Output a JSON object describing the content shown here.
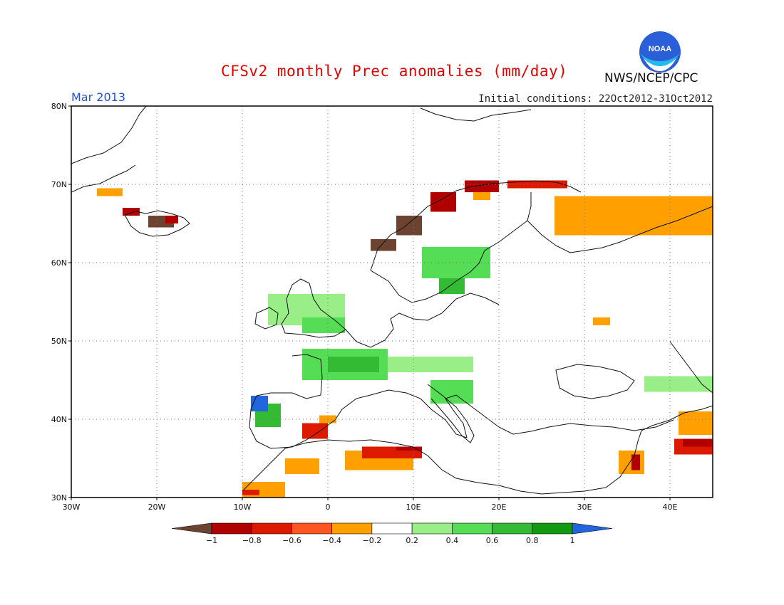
{
  "header": {
    "title": "CFSv2 monthly Prec anomalies (mm/day)",
    "month": "Mar 2013",
    "initial_conditions": "Initial conditions: 22Oct2012-31Oct2012",
    "agency": "NWS/NCEP/CPC",
    "logo_text": "NOAA"
  },
  "axes": {
    "lat_labels": [
      {
        "lat": 80,
        "label": "80N"
      },
      {
        "lat": 70,
        "label": "70N"
      },
      {
        "lat": 60,
        "label": "60N"
      },
      {
        "lat": 50,
        "label": "50N"
      },
      {
        "lat": 40,
        "label": "40N"
      },
      {
        "lat": 30,
        "label": "30N"
      }
    ],
    "lon_labels": [
      {
        "lon": -30,
        "label": "30W"
      },
      {
        "lon": -20,
        "label": "20W"
      },
      {
        "lon": -10,
        "label": "10W"
      },
      {
        "lon": 0,
        "label": "0"
      },
      {
        "lon": 10,
        "label": "10E"
      },
      {
        "lon": 20,
        "label": "20E"
      },
      {
        "lon": 30,
        "label": "30E"
      },
      {
        "lon": 40,
        "label": "40E"
      }
    ],
    "lon_range": [
      -30,
      45
    ],
    "lat_range": [
      30,
      80
    ],
    "grid": "dotted"
  },
  "colorbar": {
    "colors": [
      "#6b4330",
      "#b10000",
      "#dd1a00",
      "#ff5522",
      "#ffa000",
      "#ffffff",
      "#99ee88",
      "#55dd55",
      "#33bb33",
      "#119911",
      "#2266dd"
    ],
    "tick_labels": [
      "-1",
      "-0.8",
      "-0.6",
      "-0.4",
      "-0.2",
      "0.2",
      "0.4",
      "0.6",
      "0.8",
      "1"
    ]
  },
  "map_data": {
    "cell_deg": 1.25,
    "anomaly_patches": [
      {
        "region": "Iceland NW",
        "lon": -24,
        "lat": 66,
        "w": 2,
        "h": 1,
        "cls": "-0.8"
      },
      {
        "region": "Iceland S",
        "lon": -21,
        "lat": 64.5,
        "w": 3,
        "h": 1.5,
        "cls": "-1"
      },
      {
        "region": "Iceland S edge",
        "lon": -19,
        "lat": 65,
        "w": 1.5,
        "h": 1,
        "cls": "-0.8"
      },
      {
        "region": "Greenland E",
        "lon": -27,
        "lat": 68.5,
        "w": 3,
        "h": 1,
        "cls": "-0.4"
      },
      {
        "region": "Norway coast S",
        "lon": 5,
        "lat": 61.5,
        "w": 3,
        "h": 1.5,
        "cls": "-1"
      },
      {
        "region": "Norway coast mid",
        "lon": 8,
        "lat": 63.5,
        "w": 3,
        "h": 2.5,
        "cls": "-1"
      },
      {
        "region": "Norway coast N",
        "lon": 12,
        "lat": 66.5,
        "w": 3,
        "h": 2.5,
        "cls": "-0.8"
      },
      {
        "region": "Norway far N",
        "lon": 16,
        "lat": 69,
        "w": 4,
        "h": 1.5,
        "cls": "-0.8"
      },
      {
        "region": "Norway north inland",
        "lon": 17,
        "lat": 68,
        "w": 2,
        "h": 1,
        "cls": "-0.4"
      },
      {
        "region": "Finnmark",
        "lon": 21,
        "lat": 69.5,
        "w": 7,
        "h": 1,
        "cls": "-0.6"
      },
      {
        "region": "Kola / NW Russia",
        "lon": 26.5,
        "lat": 63.5,
        "w": 18.5,
        "h": 5,
        "cls": "-0.4"
      },
      {
        "region": "Belarus spot",
        "lon": 31,
        "lat": 52,
        "w": 2,
        "h": 1,
        "cls": "-0.4"
      },
      {
        "region": "Sweden / Finland S",
        "lon": 11,
        "lat": 58,
        "w": 8,
        "h": 4,
        "cls": "0.4"
      },
      {
        "region": "Sweden south",
        "lon": 13,
        "lat": 56,
        "w": 3,
        "h": 2,
        "cls": "0.6"
      },
      {
        "region": "British Isles",
        "lon": -7,
        "lat": 52,
        "w": 9,
        "h": 4,
        "cls": "0.2"
      },
      {
        "region": "UK south",
        "lon": -3,
        "lat": 51,
        "w": 5,
        "h": 2,
        "cls": "0.4"
      },
      {
        "region": "France",
        "lon": -3,
        "lat": 45,
        "w": 10,
        "h": 4,
        "cls": "0.4"
      },
      {
        "region": "France centre",
        "lon": 0,
        "lat": 46,
        "w": 6,
        "h": 2,
        "cls": "0.6"
      },
      {
        "region": "Alps / Central Europe",
        "lon": 7,
        "lat": 46,
        "w": 10,
        "h": 2,
        "cls": "0.2"
      },
      {
        "region": "Italy / Balkans",
        "lon": 12,
        "lat": 42,
        "w": 5,
        "h": 3,
        "cls": "0.4"
      },
      {
        "region": "Ukraine south",
        "lon": 37,
        "lat": 43.5,
        "w": 8,
        "h": 2,
        "cls": "0.2"
      },
      {
        "region": "Portugal",
        "lon": -8.5,
        "lat": 39,
        "w": 3,
        "h": 3,
        "cls": "0.6"
      },
      {
        "region": "Portugal north",
        "lon": -9,
        "lat": 41,
        "w": 2,
        "h": 2,
        "cls": "1"
      },
      {
        "region": "Spain east",
        "lon": -3,
        "lat": 37.5,
        "w": 3,
        "h": 2,
        "cls": "-0.6"
      },
      {
        "region": "Spain east coast",
        "lon": -1,
        "lat": 39.5,
        "w": 2,
        "h": 1,
        "cls": "-0.4"
      },
      {
        "region": "North Africa west",
        "lon": -5,
        "lat": 33,
        "w": 4,
        "h": 2,
        "cls": "-0.4"
      },
      {
        "region": "North Africa mid",
        "lon": 2,
        "lat": 33.5,
        "w": 8,
        "h": 2.5,
        "cls": "-0.4"
      },
      {
        "region": "North Africa east",
        "lon": 4,
        "lat": 35,
        "w": 7,
        "h": 1.5,
        "cls": "-0.6"
      },
      {
        "region": "Tunisia",
        "lon": 8,
        "lat": 36,
        "w": 3,
        "h": 0.5,
        "cls": "-0.8"
      },
      {
        "region": "Morocco",
        "lon": -10,
        "lat": 30,
        "w": 5,
        "h": 2,
        "cls": "-0.4"
      },
      {
        "region": "Morocco coast",
        "lon": -10,
        "lat": 30.3,
        "w": 2,
        "h": 0.7,
        "cls": "-0.6"
      },
      {
        "region": "Levant",
        "lon": 34,
        "lat": 33,
        "w": 3,
        "h": 3,
        "cls": "-0.4"
      },
      {
        "region": "Levant coast",
        "lon": 35.5,
        "lat": 33.5,
        "w": 1,
        "h": 2,
        "cls": "-0.8"
      },
      {
        "region": "Turkey east",
        "lon": 40.5,
        "lat": 35.5,
        "w": 4.5,
        "h": 2,
        "cls": "-0.6"
      },
      {
        "region": "Caucasus",
        "lon": 41.5,
        "lat": 36.5,
        "w": 3.5,
        "h": 1,
        "cls": "-0.8"
      },
      {
        "region": "Caucasus north",
        "lon": 41,
        "lat": 38,
        "w": 4,
        "h": 3,
        "cls": "-0.4"
      }
    ]
  }
}
